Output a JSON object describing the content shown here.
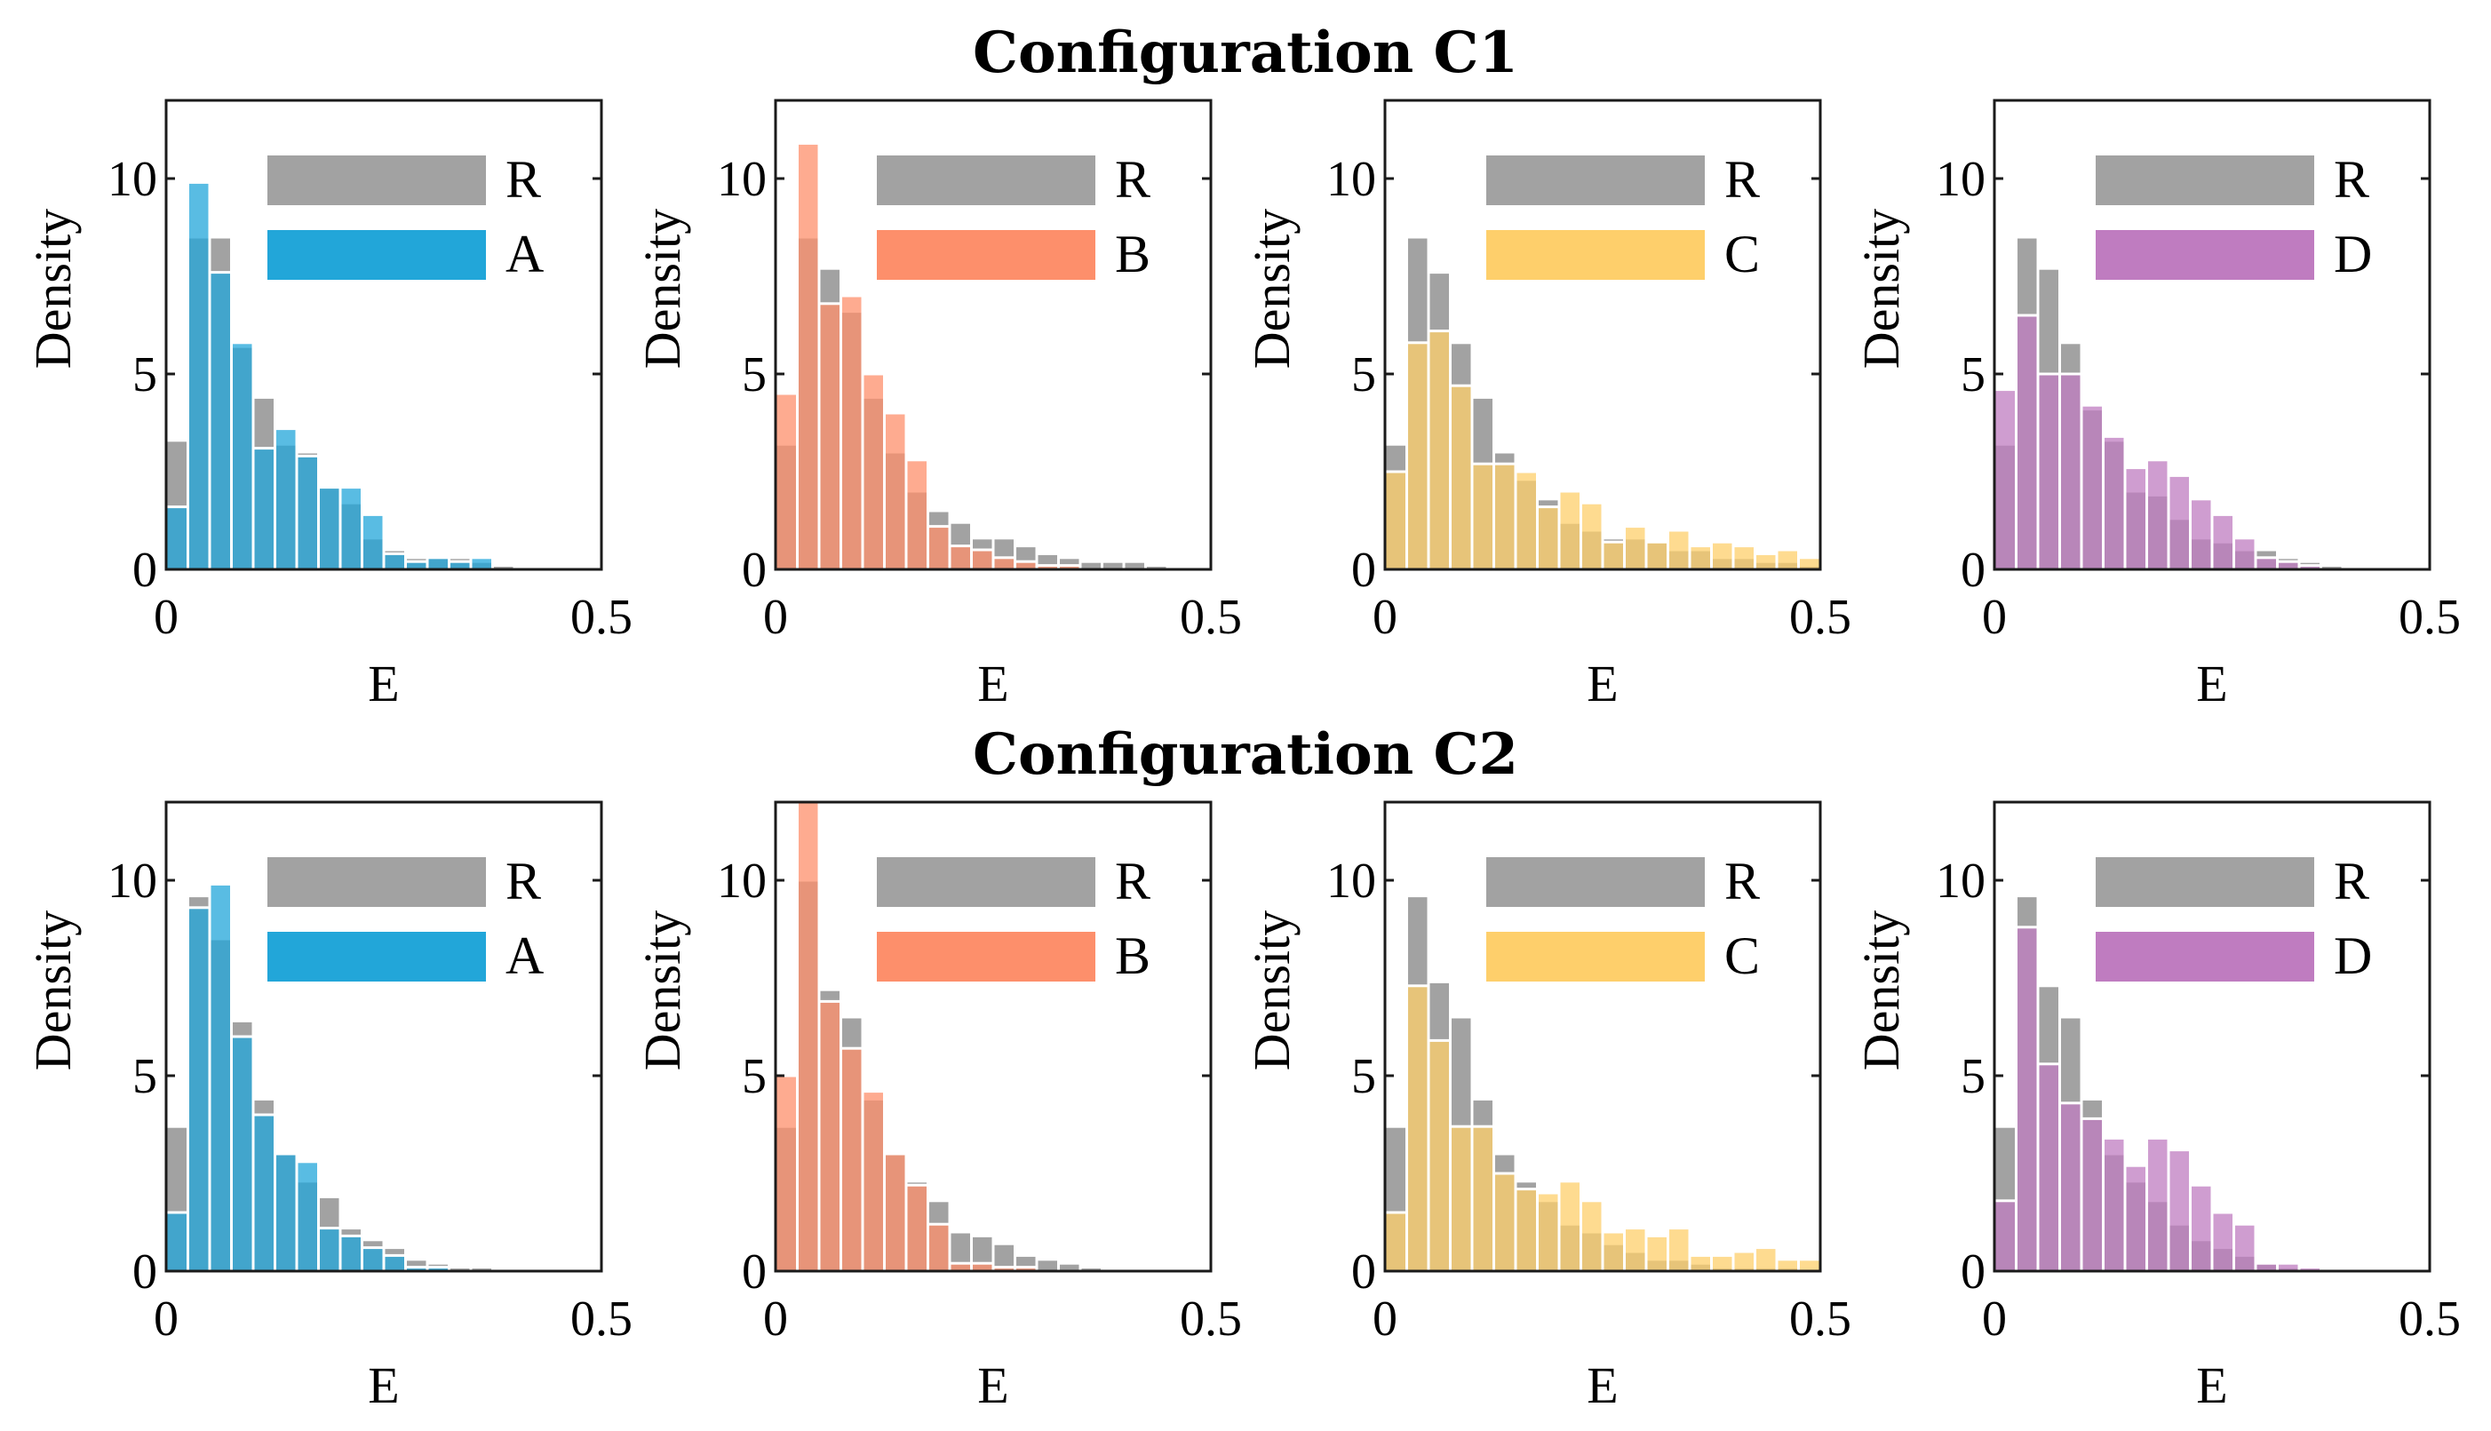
{
  "figure": {
    "row_titles": [
      "Configuration C1",
      "Configuration C2"
    ]
  },
  "colors": {
    "R": "#a2a2a2",
    "A": "#22a6d9",
    "B": "#fd8f6b",
    "C": "#fecf6b",
    "D": "#bf7cc0"
  },
  "chart_data": [
    {
      "type": "bar",
      "title": "",
      "row": "Configuration C1",
      "xlabel": "E",
      "ylabel": "Density",
      "xlim": [
        0,
        0.5
      ],
      "ylim": [
        0,
        12
      ],
      "xticks": [
        "0",
        "0.5"
      ],
      "yticks": [
        "0",
        "5",
        "10"
      ],
      "bin_width": 0.025,
      "legend": [
        "R",
        "A"
      ],
      "legend_position": "top-right",
      "series": [
        {
          "name": "R",
          "values": [
            3.3,
            8.5,
            8.5,
            5.7,
            4.4,
            3.2,
            3.0,
            2.1,
            1.7,
            0.8,
            0.5,
            0.3,
            0.3,
            0.3,
            0.2,
            0.1,
            0,
            0,
            0,
            0
          ]
        },
        {
          "name": "A",
          "values": [
            1.6,
            9.9,
            7.6,
            5.8,
            3.1,
            3.6,
            2.9,
            2.1,
            2.1,
            1.4,
            0.4,
            0.2,
            0.3,
            0.2,
            0.3,
            0,
            0,
            0,
            0,
            0
          ]
        }
      ]
    },
    {
      "type": "bar",
      "title": "",
      "row": "Configuration C1",
      "xlabel": "E",
      "ylabel": "Density",
      "xlim": [
        0,
        0.5
      ],
      "ylim": [
        0,
        12
      ],
      "xticks": [
        "0",
        "0.5"
      ],
      "yticks": [
        "0",
        "5",
        "10"
      ],
      "bin_width": 0.025,
      "legend": [
        "R",
        "B"
      ],
      "legend_position": "top-right",
      "series": [
        {
          "name": "R",
          "values": [
            3.2,
            8.5,
            7.7,
            6.6,
            4.4,
            3.0,
            2.0,
            1.5,
            1.2,
            0.8,
            0.8,
            0.6,
            0.4,
            0.3,
            0.2,
            0.2,
            0.2,
            0.1,
            0,
            0
          ]
        },
        {
          "name": "B",
          "values": [
            4.5,
            10.9,
            6.8,
            7.0,
            5.0,
            4.0,
            2.8,
            1.1,
            0.6,
            0.5,
            0.3,
            0.2,
            0.1,
            0.1,
            0,
            0,
            0,
            0,
            0,
            0
          ]
        }
      ]
    },
    {
      "type": "bar",
      "title": "",
      "row": "Configuration C1",
      "xlabel": "E",
      "ylabel": "Density",
      "xlim": [
        0,
        0.5
      ],
      "ylim": [
        0,
        12
      ],
      "xticks": [
        "0",
        "0.5"
      ],
      "yticks": [
        "0",
        "5",
        "10"
      ],
      "bin_width": 0.025,
      "legend": [
        "R",
        "C"
      ],
      "legend_position": "top-right",
      "series": [
        {
          "name": "R",
          "values": [
            3.2,
            8.5,
            7.6,
            5.8,
            4.4,
            3.0,
            2.3,
            1.8,
            1.2,
            1.0,
            0.8,
            0.8,
            0.7,
            0.5,
            0.5,
            0.3,
            0.3,
            0.2,
            0.2,
            0.1
          ]
        },
        {
          "name": "C",
          "values": [
            2.5,
            5.8,
            6.1,
            4.7,
            2.7,
            2.7,
            2.5,
            1.6,
            2.0,
            1.7,
            0.7,
            1.1,
            0.7,
            1.0,
            0.6,
            0.7,
            0.6,
            0.4,
            0.5,
            0.3
          ]
        }
      ]
    },
    {
      "type": "bar",
      "title": "",
      "row": "Configuration C1",
      "xlabel": "E",
      "ylabel": "Density",
      "xlim": [
        0,
        0.5
      ],
      "ylim": [
        0,
        12
      ],
      "xticks": [
        "0",
        "0.5"
      ],
      "yticks": [
        "0",
        "5",
        "10"
      ],
      "bin_width": 0.025,
      "legend": [
        "R",
        "D"
      ],
      "legend_position": "top-right",
      "series": [
        {
          "name": "R",
          "values": [
            3.2,
            8.5,
            7.7,
            5.8,
            4.1,
            3.3,
            2.0,
            1.9,
            1.3,
            0.8,
            0.7,
            0.5,
            0.5,
            0.3,
            0.2,
            0.1,
            0,
            0,
            0,
            0
          ]
        },
        {
          "name": "D",
          "values": [
            4.6,
            6.5,
            5.0,
            5.0,
            4.2,
            3.4,
            2.6,
            2.8,
            2.4,
            1.8,
            1.4,
            0.8,
            0.3,
            0.2,
            0.1,
            0,
            0,
            0,
            0,
            0
          ]
        }
      ]
    },
    {
      "type": "bar",
      "title": "",
      "row": "Configuration C2",
      "xlabel": "E",
      "ylabel": "Density",
      "xlim": [
        0,
        0.5
      ],
      "ylim": [
        0,
        12
      ],
      "xticks": [
        "0",
        "0.5"
      ],
      "yticks": [
        "0",
        "5",
        "10"
      ],
      "bin_width": 0.025,
      "legend": [
        "R",
        "A"
      ],
      "legend_position": "top-right",
      "series": [
        {
          "name": "R",
          "values": [
            3.7,
            9.6,
            8.5,
            6.4,
            4.4,
            3.0,
            2.3,
            1.9,
            1.1,
            0.8,
            0.6,
            0.3,
            0.2,
            0.1,
            0.1,
            0,
            0,
            0,
            0,
            0
          ]
        },
        {
          "name": "A",
          "values": [
            1.5,
            9.3,
            9.9,
            6.0,
            4.0,
            3.0,
            2.8,
            1.1,
            0.9,
            0.6,
            0.4,
            0.1,
            0.1,
            0,
            0,
            0,
            0,
            0,
            0,
            0
          ]
        }
      ]
    },
    {
      "type": "bar",
      "title": "",
      "row": "Configuration C2",
      "xlabel": "E",
      "ylabel": "Density",
      "xlim": [
        0,
        0.5
      ],
      "ylim": [
        0,
        12
      ],
      "xticks": [
        "0",
        "0.5"
      ],
      "yticks": [
        "0",
        "5",
        "10"
      ],
      "bin_width": 0.025,
      "legend": [
        "R",
        "B"
      ],
      "legend_position": "top-right",
      "series": [
        {
          "name": "R",
          "values": [
            3.7,
            10.0,
            7.2,
            6.5,
            4.4,
            3.0,
            2.3,
            1.8,
            1.0,
            0.9,
            0.7,
            0.4,
            0.3,
            0.2,
            0.1,
            0,
            0,
            0,
            0,
            0
          ]
        },
        {
          "name": "B",
          "values": [
            5.0,
            12.0,
            6.9,
            5.7,
            4.6,
            3.0,
            2.2,
            1.2,
            0.2,
            0.2,
            0.1,
            0.1,
            0,
            0,
            0,
            0,
            0,
            0,
            0,
            0
          ]
        }
      ]
    },
    {
      "type": "bar",
      "title": "",
      "row": "Configuration C2",
      "xlabel": "E",
      "ylabel": "Density",
      "xlim": [
        0,
        0.5
      ],
      "ylim": [
        0,
        12
      ],
      "xticks": [
        "0",
        "0.5"
      ],
      "yticks": [
        "0",
        "5",
        "10"
      ],
      "bin_width": 0.025,
      "legend": [
        "R",
        "C"
      ],
      "legend_position": "top-right",
      "series": [
        {
          "name": "R",
          "values": [
            3.7,
            9.6,
            7.4,
            6.5,
            4.4,
            3.0,
            2.3,
            1.8,
            1.2,
            1.0,
            0.7,
            0.5,
            0.3,
            0.3,
            0.2,
            0.1,
            0.1,
            0.1,
            0.1,
            0
          ]
        },
        {
          "name": "C",
          "values": [
            1.5,
            7.3,
            5.9,
            3.7,
            3.7,
            2.5,
            2.1,
            2.0,
            2.3,
            1.8,
            1.0,
            1.1,
            0.9,
            1.1,
            0.4,
            0.4,
            0.5,
            0.6,
            0.3,
            0.3
          ]
        }
      ]
    },
    {
      "type": "bar",
      "title": "",
      "row": "Configuration C2",
      "xlabel": "E",
      "ylabel": "Density",
      "xlim": [
        0,
        0.5
      ],
      "ylim": [
        0,
        12
      ],
      "xticks": [
        "0",
        "0.5"
      ],
      "yticks": [
        "0",
        "5",
        "10"
      ],
      "bin_width": 0.025,
      "legend": [
        "R",
        "D"
      ],
      "legend_position": "top-right",
      "series": [
        {
          "name": "R",
          "values": [
            3.7,
            9.6,
            7.3,
            6.5,
            4.4,
            3.0,
            2.3,
            1.8,
            1.2,
            0.8,
            0.6,
            0.4,
            0.2,
            0.1,
            0,
            0,
            0,
            0,
            0,
            0
          ]
        },
        {
          "name": "D",
          "values": [
            1.8,
            8.8,
            5.3,
            4.3,
            3.9,
            3.4,
            2.7,
            3.4,
            3.1,
            2.2,
            1.5,
            1.2,
            0.2,
            0.2,
            0.1,
            0,
            0,
            0,
            0,
            0
          ]
        }
      ]
    }
  ]
}
